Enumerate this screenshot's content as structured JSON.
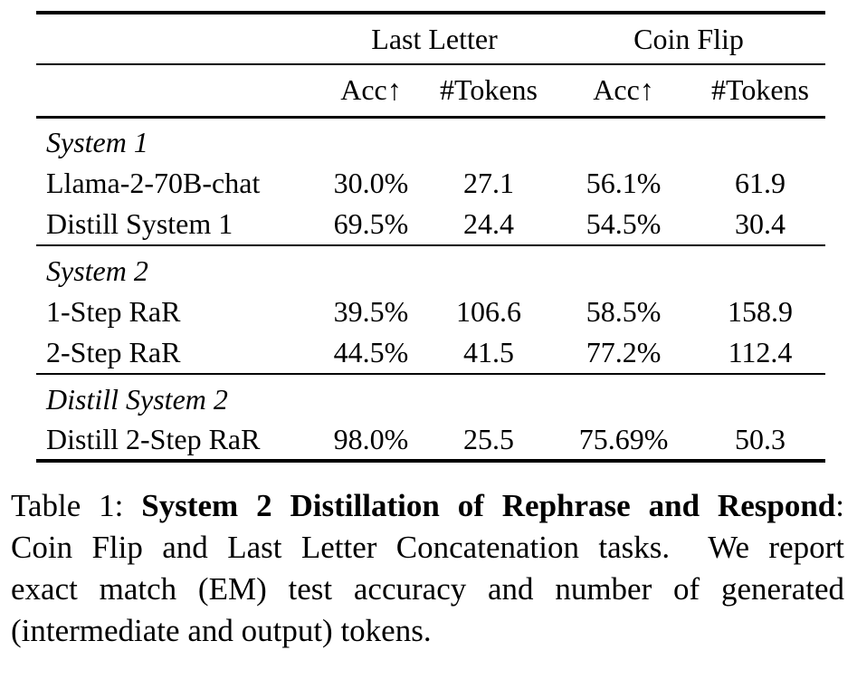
{
  "page": {
    "background_color": "#ffffff",
    "text_color": "#000000"
  },
  "table": {
    "corner_label": "",
    "group_headers": [
      {
        "label": "Last Letter"
      },
      {
        "label": "Coin Flip"
      }
    ],
    "sub_headers": [
      "Acc↑",
      "#Tokens",
      "Acc↑",
      "#Tokens"
    ],
    "sections": [
      {
        "title": "System 1",
        "rows": [
          {
            "label": "Llama-2-70B-chat",
            "values": [
              "30.0%",
              "27.1",
              "56.1%",
              "61.9"
            ]
          },
          {
            "label": "Distill System 1",
            "values": [
              "69.5%",
              "24.4",
              "54.5%",
              "30.4"
            ]
          }
        ]
      },
      {
        "title": "System 2",
        "rows": [
          {
            "label": "1-Step RaR",
            "values": [
              "39.5%",
              "106.6",
              "58.5%",
              "158.9"
            ]
          },
          {
            "label": "2-Step RaR",
            "values": [
              "44.5%",
              "41.5",
              "77.2%",
              "112.4"
            ]
          }
        ]
      },
      {
        "title": "Distill System 2",
        "rows": [
          {
            "label": "Distill 2-Step RaR",
            "values": [
              "98.0%",
              "25.5",
              "75.69%",
              "50.3"
            ]
          }
        ]
      }
    ]
  },
  "caption": {
    "lines": [
      {
        "justify": true,
        "segments": [
          {
            "text": "Table 1: ",
            "bold": false
          },
          {
            "text": "System 2 Distillation of Rephrase and Respond",
            "bold": true
          },
          {
            "text": ":",
            "bold": false
          }
        ]
      },
      {
        "justify": true,
        "segments": [
          {
            "text": "Coin Flip and Last Letter Concatenation tasks.  We report",
            "bold": false
          }
        ]
      },
      {
        "justify": true,
        "segments": [
          {
            "text": "exact match (EM) test accuracy and number of generated",
            "bold": false
          }
        ]
      },
      {
        "justify": false,
        "segments": [
          {
            "text": "(intermediate and output) tokens.",
            "bold": false
          }
        ]
      }
    ]
  }
}
